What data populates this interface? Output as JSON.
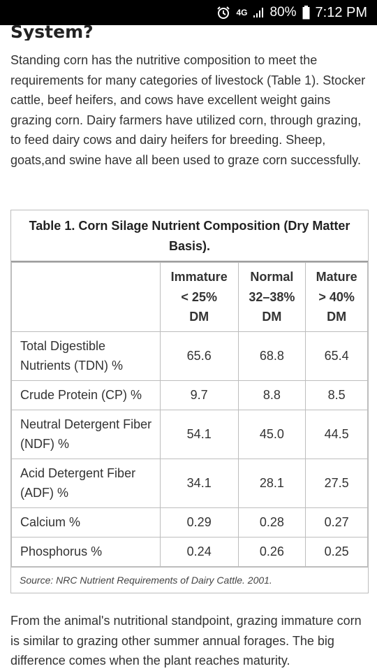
{
  "status_bar": {
    "network": "4G",
    "battery": "80%",
    "time": "7:12 PM"
  },
  "article": {
    "heading_fragment": "System?",
    "paragraph1": "Standing corn has the nutritive composition to meet the requirements for many categories of livestock (Table 1). Stocker cattle, beef heifers, and cows have excellent weight gains grazing corn. Dairy farmers have utilized corn, through grazing, to feed dairy cows and dairy heifers for breeding. Sheep, goats,and swine have all been used to graze corn successfully.",
    "paragraph2": "From the animal's nutritional standpoint, grazing immature corn is similar to grazing other summer annual forages. The big difference comes when the plant reaches maturity."
  },
  "table": {
    "caption": "Table 1. Corn Silage Nutrient Composition (Dry Matter Basis).",
    "columns": [
      {
        "line1": "Immature",
        "line2": "< 25%",
        "line3": "DM"
      },
      {
        "line1": "Normal",
        "line2": "32–38%",
        "line3": "DM"
      },
      {
        "line1": "Mature",
        "line2": "> 40%",
        "line3": "DM"
      }
    ],
    "rows": [
      {
        "label": "Total Digestible Nutrients (TDN) %",
        "values": [
          "65.6",
          "68.8",
          "65.4"
        ]
      },
      {
        "label": "Crude Protein (CP) %",
        "values": [
          "9.7",
          "8.8",
          "8.5"
        ]
      },
      {
        "label": "Neutral Detergent Fiber (NDF) %",
        "values": [
          "54.1",
          "45.0",
          "44.5"
        ]
      },
      {
        "label": "Acid Detergent Fiber (ADF) %",
        "values": [
          "34.1",
          "28.1",
          "27.5"
        ]
      },
      {
        "label": "Calcium %",
        "values": [
          "0.29",
          "0.28",
          "0.27"
        ]
      },
      {
        "label": "Phosphorus %",
        "values": [
          "0.24",
          "0.26",
          "0.25"
        ]
      }
    ],
    "source": "Source: NRC Nutrient Requirements of Dairy Cattle. 2001."
  }
}
